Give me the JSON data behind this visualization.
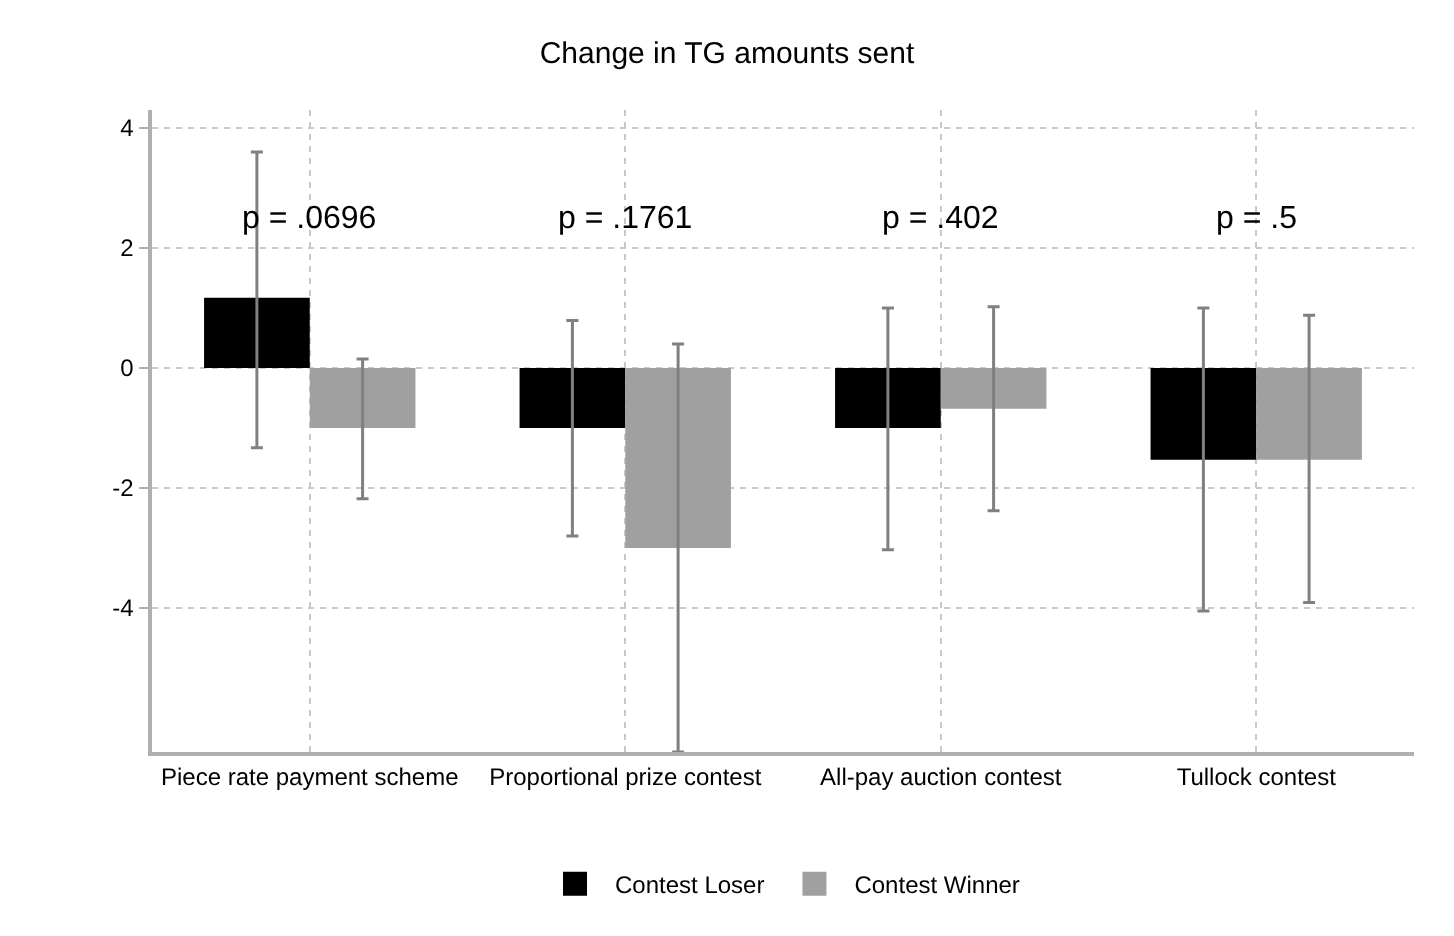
{
  "chart_data": {
    "type": "bar",
    "title": "Change in TG amounts sent",
    "categories": [
      "Piece rate payment scheme",
      "Proportional prize contest",
      "All-pay auction contest",
      "Tullock contest"
    ],
    "series": [
      {
        "name": "Contest Loser",
        "color": "#000000",
        "values": [
          1.17,
          -1.0,
          -1.0,
          -1.53
        ],
        "errors": [
          [
            -1.33,
            3.6
          ],
          [
            -2.8,
            0.79
          ],
          [
            -3.03,
            1.0
          ],
          [
            -4.05,
            1.0
          ]
        ]
      },
      {
        "name": "Contest Winner",
        "color": "#a0a0a0",
        "values": [
          -1.0,
          -3.0,
          -0.68,
          -1.53
        ],
        "errors": [
          [
            -2.18,
            0.15
          ],
          [
            -6.4,
            0.4
          ],
          [
            -2.38,
            1.02
          ],
          [
            -3.91,
            0.88
          ]
        ]
      }
    ],
    "ylim": [
      -6.4,
      4.3
    ],
    "yticks": [
      -4,
      -2,
      0,
      2,
      4
    ],
    "grid": true,
    "legend": "bottom",
    "annotations": [
      "p = .0696",
      "p = .1761",
      "p = .402",
      "p = .5"
    ]
  }
}
